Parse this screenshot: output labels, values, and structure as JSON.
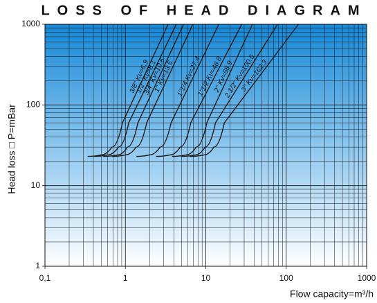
{
  "chart_data": {
    "type": "line",
    "title": "LOSS OF HEAD DIAGRAM",
    "ylabel": "Head loss □ P=mBar",
    "xlabel": "Flow capacity=m³/h",
    "xscale": "log",
    "yscale": "log",
    "xlim": [
      0.1,
      1000
    ],
    "ylim": [
      1,
      1000
    ],
    "xticks": [
      {
        "value": 0.1,
        "label": "0,1"
      },
      1,
      10,
      100,
      1000
    ],
    "yticks": [
      1,
      10,
      100,
      1000
    ],
    "xminor_ticks": [
      0.2,
      0.3,
      0.4,
      0.5,
      0.6,
      0.7,
      0.8,
      0.9,
      2,
      3,
      4,
      5,
      6,
      7,
      8,
      9,
      20,
      30,
      40,
      50,
      60,
      70,
      80,
      90,
      200,
      300,
      400,
      500,
      600,
      700,
      800,
      900
    ],
    "yminor_ticks": [
      2,
      3,
      4,
      5,
      6,
      7,
      8,
      9,
      20,
      30,
      40,
      50,
      60,
      70,
      80,
      90,
      200,
      300,
      400,
      500,
      600,
      700,
      800,
      900
    ],
    "grid": true,
    "color": "#1a1a1a",
    "series": [
      {
        "name": "3/8\" Kv=6.9",
        "x": [
          0.34,
          0.5,
          0.68,
          0.92,
          3.4
        ],
        "values": [
          23,
          24,
          30,
          60,
          1000
        ]
      },
      {
        "name": "1/2\" Kv=8.1",
        "x": [
          0.41,
          0.6,
          0.82,
          1.1,
          4.3
        ],
        "values": [
          23,
          24,
          30,
          60,
          1000
        ]
      },
      {
        "name": "3/4\" Kv=10.6",
        "x": [
          0.53,
          0.8,
          1.06,
          1.43,
          5.3
        ],
        "values": [
          23,
          24,
          30,
          60,
          1000
        ]
      },
      {
        "name": "1\" Kv=13.5",
        "x": [
          0.68,
          1.0,
          1.36,
          1.84,
          6.9
        ],
        "values": [
          23,
          24,
          30,
          60,
          1000
        ]
      },
      {
        "name": "1\"1/4 Kv=27.4",
        "x": [
          1.37,
          2.0,
          2.7,
          3.7,
          14.5
        ],
        "values": [
          23,
          24,
          30,
          60,
          1000
        ]
      },
      {
        "name": "1\"1/2 Kv=48.8",
        "x": [
          2.4,
          3.6,
          4.8,
          6.5,
          28
        ],
        "values": [
          23,
          24,
          30,
          60,
          1000
        ]
      },
      {
        "name": "2\" Kv=68.9",
        "x": [
          3.8,
          5.7,
          7.6,
          10.3,
          38
        ],
        "values": [
          23,
          24,
          30,
          60,
          1000
        ]
      },
      {
        "name": "2 1/2\" Kv=100.5",
        "x": [
          4.9,
          7.4,
          9.8,
          13.2,
          78
        ],
        "values": [
          23,
          24,
          30,
          60,
          1000
        ]
      },
      {
        "name": "3\" Kv=162.3",
        "x": [
          6.3,
          9.5,
          12.6,
          17,
          142
        ],
        "values": [
          23,
          24,
          30,
          60,
          1000
        ]
      }
    ]
  }
}
